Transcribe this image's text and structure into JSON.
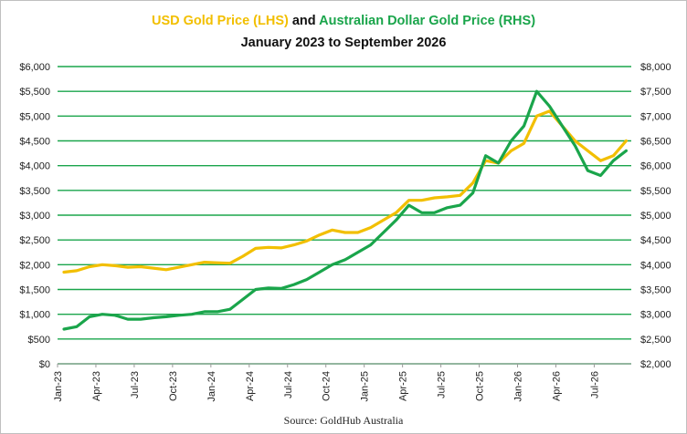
{
  "chart_data": {
    "type": "line",
    "title_parts": [
      {
        "text": "USD Gold Price (LHS)",
        "color": "#f2bf00"
      },
      {
        "text": " and ",
        "color": "#111111"
      },
      {
        "text": "Australian Dollar Gold Price (RHS)",
        "color": "#1aa54b"
      }
    ],
    "subtitle": "January 2023 to September 2026",
    "source": "Source: GoldHub Australia",
    "grid": true,
    "grid_color": "#1aa54b",
    "x_ticks": [
      "Jan-23",
      "Apr-23",
      "Jul-23",
      "Oct-23",
      "Jan-24",
      "Apr-24",
      "Jul-24",
      "Oct-24",
      "Jan-25",
      "Apr-25",
      "Jul-25",
      "Oct-25",
      "Jan-26",
      "Apr-26",
      "Jul-26"
    ],
    "y_left": {
      "min": 0,
      "max": 6000,
      "step": 500,
      "tick_labels": [
        "$0",
        "$500",
        "$1,000",
        "$1,500",
        "$2,000",
        "$2,500",
        "$3,000",
        "$3,500",
        "$4,000",
        "$4,500",
        "$5,000",
        "$5,500",
        "$6,000"
      ]
    },
    "y_right": {
      "min": 2000,
      "max": 8000,
      "step": 500,
      "tick_labels": [
        "$2,000",
        "$2,500",
        "$3,000",
        "$3,500",
        "$4,000",
        "$4,500",
        "$5,000",
        "$5,500",
        "$6,000",
        "$6,500",
        "$7,000",
        "$7,500",
        "$8,000"
      ]
    },
    "series": [
      {
        "axis": "left",
        "color": "#f2bf00",
        "x": [
          "2023-01",
          "2023-02",
          "2023-03",
          "2023-04",
          "2023-05",
          "2023-06",
          "2023-07",
          "2023-08",
          "2023-09",
          "2023-10",
          "2023-11",
          "2023-12",
          "2024-01",
          "2024-02",
          "2024-03",
          "2024-04",
          "2024-05",
          "2024-06",
          "2024-07",
          "2024-08",
          "2024-09",
          "2024-10",
          "2024-11",
          "2024-12",
          "2025-01",
          "2025-02",
          "2025-03",
          "2025-04",
          "2025-05",
          "2025-06",
          "2025-07",
          "2025-08",
          "2025-09",
          "2025-10",
          "2025-11",
          "2025-12",
          "2026-01",
          "2026-02",
          "2026-03",
          "2026-04",
          "2026-05",
          "2026-06",
          "2026-07",
          "2026-08",
          "2026-09"
        ],
        "values": [
          1850,
          1880,
          1960,
          2000,
          1980,
          1950,
          1960,
          1930,
          1900,
          1950,
          2000,
          2050,
          2040,
          2030,
          2170,
          2330,
          2350,
          2340,
          2400,
          2480,
          2600,
          2700,
          2650,
          2650,
          2750,
          2900,
          3050,
          3300,
          3300,
          3350,
          3370,
          3400,
          3650,
          4100,
          4050,
          4300,
          4450,
          5000,
          5100,
          4800,
          4500,
          4300,
          4100,
          4200,
          4500
        ]
      },
      {
        "axis": "right",
        "color": "#1aa54b",
        "x": [
          "2023-01",
          "2023-02",
          "2023-03",
          "2023-04",
          "2023-05",
          "2023-06",
          "2023-07",
          "2023-08",
          "2023-09",
          "2023-10",
          "2023-11",
          "2023-12",
          "2024-01",
          "2024-02",
          "2024-03",
          "2024-04",
          "2024-05",
          "2024-06",
          "2024-07",
          "2024-08",
          "2024-09",
          "2024-10",
          "2024-11",
          "2024-12",
          "2025-01",
          "2025-02",
          "2025-03",
          "2025-04",
          "2025-05",
          "2025-06",
          "2025-07",
          "2025-08",
          "2025-09",
          "2025-10",
          "2025-11",
          "2025-12",
          "2026-01",
          "2026-02",
          "2026-03",
          "2026-04",
          "2026-05",
          "2026-06",
          "2026-07",
          "2026-08",
          "2026-09"
        ],
        "values": [
          2700,
          2750,
          2950,
          3000,
          2980,
          2900,
          2900,
          2930,
          2950,
          2980,
          3000,
          3050,
          3050,
          3100,
          3300,
          3500,
          3530,
          3520,
          3600,
          3700,
          3850,
          4000,
          4100,
          4250,
          4400,
          4650,
          4900,
          5200,
          5050,
          5050,
          5150,
          5200,
          5450,
          6200,
          6050,
          6500,
          6800,
          7500,
          7200,
          6800,
          6400,
          5900,
          5800,
          6100,
          6300
        ]
      }
    ]
  }
}
